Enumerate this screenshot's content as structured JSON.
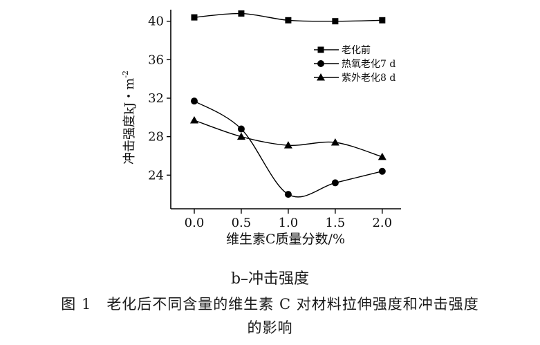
{
  "chart_data": {
    "type": "line",
    "x": [
      0.0,
      0.5,
      1.0,
      1.5,
      2.0
    ],
    "x_tick_labels": [
      "0.0",
      "0.5",
      "1.0",
      "1.5",
      "2.0"
    ],
    "y_ticks": [
      24,
      28,
      32,
      36,
      40
    ],
    "xlim": [
      -0.25,
      2.2
    ],
    "ylim": [
      20.5,
      41.2
    ],
    "xlabel": "维生素C质量分数/%",
    "ylabel": "冲击强度kJ・m",
    "ylabel_sup": "-2",
    "legend_position": "top-right",
    "grid": false,
    "smooth": true,
    "series": [
      {
        "name": "老化前",
        "marker": "square",
        "values": [
          40.4,
          40.8,
          40.1,
          40.0,
          40.1
        ]
      },
      {
        "name": "热氧老化7 d",
        "marker": "circle",
        "values": [
          31.7,
          28.8,
          22.0,
          23.2,
          24.4
        ]
      },
      {
        "name": "紫外老化8 d",
        "marker": "triangle",
        "values": [
          29.7,
          28.0,
          27.1,
          27.4,
          25.9
        ]
      }
    ],
    "colors": {
      "line": "#000000"
    }
  },
  "caption": {
    "subtitle": "b–冲击强度",
    "figure_number": "图 1",
    "figure_title_line1": "老化后不同含量的维生素 C 对材料拉伸强度和冲击强度",
    "figure_title_line2": "的影响"
  }
}
